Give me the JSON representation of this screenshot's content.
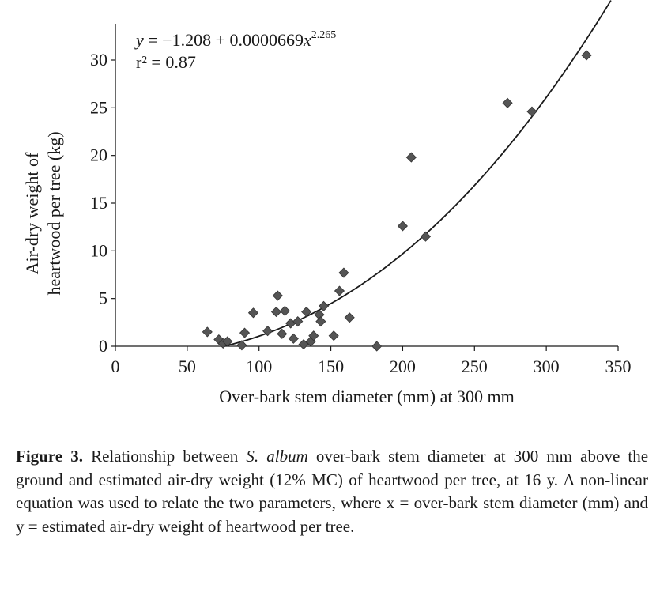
{
  "chart_data": {
    "type": "scatter",
    "title": "",
    "xlabel": "Over-bark stem diameter (mm) at 300 mm",
    "ylabel_lines": [
      "Air-dry weight of",
      "heartwood  per tree (kg)"
    ],
    "xlim": [
      0,
      350
    ],
    "ylim": [
      0,
      30
    ],
    "xticks": [
      0,
      50,
      100,
      150,
      200,
      250,
      300,
      350
    ],
    "yticks": [
      0,
      5,
      10,
      15,
      20,
      25,
      30
    ],
    "grid": false,
    "legend": "none",
    "marker": "diamond",
    "marker_color": "#555555",
    "line_color": "#1a1a1a",
    "equation": {
      "y_part": "y",
      "eq_part": " = −1.208 + 0.0000669",
      "x_part": "x",
      "exponent": "2.265",
      "r2_label": "r² = 0.87"
    },
    "fit": {
      "a": -1.208,
      "b": 6.69e-05,
      "c": 2.265,
      "x_range": [
        75,
        345
      ]
    },
    "points": [
      {
        "x": 64,
        "y": 1.5
      },
      {
        "x": 72,
        "y": 0.7
      },
      {
        "x": 75,
        "y": 0.3
      },
      {
        "x": 78,
        "y": 0.5
      },
      {
        "x": 88,
        "y": 0.1
      },
      {
        "x": 90,
        "y": 1.4
      },
      {
        "x": 96,
        "y": 3.5
      },
      {
        "x": 106,
        "y": 1.6
      },
      {
        "x": 112,
        "y": 3.6
      },
      {
        "x": 113,
        "y": 5.3
      },
      {
        "x": 116,
        "y": 1.3
      },
      {
        "x": 118,
        "y": 3.7
      },
      {
        "x": 122,
        "y": 2.4
      },
      {
        "x": 124,
        "y": 0.8
      },
      {
        "x": 127,
        "y": 2.6
      },
      {
        "x": 131,
        "y": 0.2
      },
      {
        "x": 133,
        "y": 3.6
      },
      {
        "x": 136,
        "y": 0.5
      },
      {
        "x": 138,
        "y": 1.1
      },
      {
        "x": 142,
        "y": 3.3
      },
      {
        "x": 143,
        "y": 2.6
      },
      {
        "x": 145,
        "y": 4.2
      },
      {
        "x": 152,
        "y": 1.1
      },
      {
        "x": 156,
        "y": 5.8
      },
      {
        "x": 159,
        "y": 7.7
      },
      {
        "x": 163,
        "y": 3.0
      },
      {
        "x": 182,
        "y": 0.0
      },
      {
        "x": 200,
        "y": 12.6
      },
      {
        "x": 206,
        "y": 19.8
      },
      {
        "x": 216,
        "y": 11.5
      },
      {
        "x": 273,
        "y": 25.5
      },
      {
        "x": 290,
        "y": 24.6
      },
      {
        "x": 328,
        "y": 30.5
      }
    ]
  },
  "caption": {
    "label": "Figure 3.",
    "text_before": " Relationship between ",
    "species": "S. album",
    "text_after": " over-bark stem diameter at 300 mm above the ground and estimated air-dry weight (12% MC) of heartwood per tree, at 16 y. A non-linear equation was used to relate the two parameters, where x = over-bark stem diameter (mm) and y = estimated air-dry weight of heartwood per tree."
  }
}
